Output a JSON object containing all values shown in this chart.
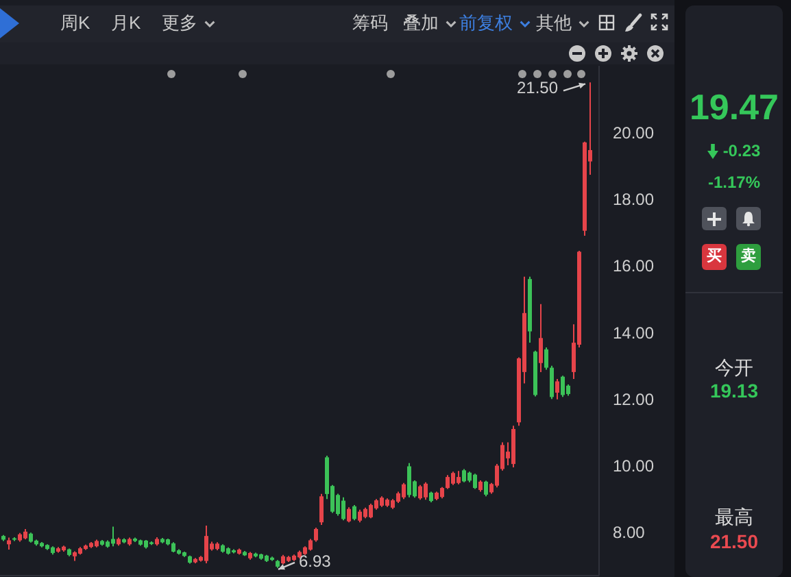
{
  "chart_data": [
    {
      "type": "candlestick",
      "categories": [
        null,
        null,
        null,
        null,
        null,
        null,
        null,
        null,
        null,
        null,
        null,
        null,
        null,
        null,
        null,
        null,
        null,
        null,
        null,
        null,
        null,
        null,
        null,
        null,
        null,
        null,
        null,
        null,
        null,
        null,
        null,
        null,
        null,
        null,
        null,
        null,
        null,
        null,
        null,
        null,
        null,
        null,
        null,
        null,
        null,
        null,
        null,
        null,
        null,
        null,
        null,
        null,
        null,
        null,
        null,
        null,
        null,
        null,
        null,
        null,
        null,
        null,
        null,
        null,
        null,
        null,
        null,
        null,
        null,
        null,
        null,
        null,
        null,
        null,
        null,
        null,
        null,
        null,
        null,
        null,
        null,
        null,
        null,
        null,
        null,
        null,
        null,
        null,
        null,
        null,
        null,
        null,
        null,
        null,
        null,
        null,
        null,
        null,
        null,
        null,
        null,
        null,
        null,
        null,
        null,
        null,
        null,
        null
      ],
      "ohlc": [
        [
          7.89,
          7.92,
          7.74,
          7.78
        ],
        [
          7.64,
          7.84,
          7.48,
          7.76
        ],
        [
          7.82,
          7.85,
          7.74,
          7.78
        ],
        [
          7.76,
          7.98,
          7.72,
          7.94
        ],
        [
          7.82,
          8.1,
          7.79,
          8.02
        ],
        [
          7.96,
          7.99,
          7.69,
          7.72
        ],
        [
          7.75,
          7.78,
          7.6,
          7.64
        ],
        [
          7.68,
          7.71,
          7.55,
          7.58
        ],
        [
          7.62,
          7.64,
          7.47,
          7.5
        ],
        [
          7.55,
          7.58,
          7.33,
          7.38
        ],
        [
          7.42,
          7.56,
          7.39,
          7.52
        ],
        [
          7.46,
          7.6,
          7.42,
          7.57
        ],
        [
          7.49,
          7.51,
          7.28,
          7.32
        ],
        [
          7.28,
          7.43,
          7.14,
          7.4
        ],
        [
          7.36,
          7.56,
          7.33,
          7.52
        ],
        [
          7.5,
          7.63,
          7.47,
          7.6
        ],
        [
          7.56,
          7.71,
          7.53,
          7.68
        ],
        [
          7.58,
          7.78,
          7.55,
          7.74
        ],
        [
          7.74,
          7.77,
          7.6,
          7.63
        ],
        [
          7.72,
          7.76,
          7.54,
          7.57
        ],
        [
          7.8,
          8.17,
          7.58,
          7.66
        ],
        [
          7.64,
          7.84,
          7.6,
          7.8
        ],
        [
          7.79,
          7.82,
          7.67,
          7.7
        ],
        [
          7.64,
          7.84,
          7.6,
          7.8
        ],
        [
          7.81,
          7.84,
          7.71,
          7.74
        ],
        [
          7.76,
          7.78,
          7.6,
          7.63
        ],
        [
          7.75,
          7.77,
          7.51,
          7.55
        ],
        [
          7.7,
          7.73,
          7.62,
          7.65
        ],
        [
          7.64,
          7.85,
          7.6,
          7.8
        ],
        [
          7.8,
          7.83,
          7.67,
          7.7
        ],
        [
          7.79,
          7.81,
          7.61,
          7.64
        ],
        [
          7.67,
          7.7,
          7.4,
          7.42
        ],
        [
          7.46,
          7.49,
          7.33,
          7.36
        ],
        [
          7.4,
          7.42,
          7.26,
          7.29
        ],
        [
          7.28,
          7.3,
          7.06,
          7.09
        ],
        [
          7.1,
          7.23,
          7.07,
          7.2
        ],
        [
          7.15,
          7.29,
          7.12,
          7.26
        ],
        [
          7.14,
          8.2,
          7.07,
          7.89
        ],
        [
          7.49,
          7.72,
          7.45,
          7.66
        ],
        [
          7.5,
          7.7,
          7.46,
          7.66
        ],
        [
          7.61,
          7.64,
          7.39,
          7.42
        ],
        [
          7.52,
          7.55,
          7.33,
          7.36
        ],
        [
          7.46,
          7.49,
          7.37,
          7.4
        ],
        [
          7.36,
          7.51,
          7.33,
          7.48
        ],
        [
          7.41,
          7.44,
          7.29,
          7.31
        ],
        [
          7.22,
          7.41,
          7.18,
          7.38
        ],
        [
          7.36,
          7.39,
          7.25,
          7.28
        ],
        [
          7.34,
          7.36,
          7.18,
          7.21
        ],
        [
          7.3,
          7.32,
          7.11,
          7.14
        ],
        [
          7.24,
          7.27,
          7.14,
          7.17
        ],
        [
          7.14,
          7.17,
          6.93,
          6.97
        ],
        [
          7.07,
          7.32,
          7.04,
          7.28
        ],
        [
          7.14,
          7.29,
          7.11,
          7.26
        ],
        [
          7.17,
          7.33,
          7.14,
          7.3
        ],
        [
          7.25,
          7.45,
          7.22,
          7.41
        ],
        [
          7.35,
          7.58,
          7.32,
          7.55
        ],
        [
          7.48,
          7.8,
          7.45,
          7.76
        ],
        [
          7.76,
          8.14,
          7.72,
          8.1
        ],
        [
          8.3,
          9.15,
          8.22,
          9.08
        ],
        [
          10.25,
          10.3,
          9.0,
          9.15
        ],
        [
          9.39,
          9.42,
          8.58,
          8.62
        ],
        [
          9.12,
          9.16,
          8.5,
          8.55
        ],
        [
          8.95,
          9.05,
          8.36,
          8.4
        ],
        [
          8.33,
          8.75,
          8.3,
          8.7
        ],
        [
          8.78,
          8.82,
          8.36,
          8.4
        ],
        [
          8.35,
          8.68,
          8.3,
          8.62
        ],
        [
          8.46,
          8.74,
          8.42,
          8.7
        ],
        [
          8.45,
          8.86,
          8.42,
          8.82
        ],
        [
          8.72,
          9.0,
          8.68,
          8.96
        ],
        [
          8.8,
          9.08,
          8.76,
          9.04
        ],
        [
          8.8,
          9.02,
          8.76,
          8.98
        ],
        [
          8.74,
          9.0,
          8.7,
          8.96
        ],
        [
          8.92,
          9.22,
          8.88,
          9.17
        ],
        [
          9.05,
          9.48,
          9.0,
          9.44
        ],
        [
          9.98,
          10.08,
          9.05,
          9.12
        ],
        [
          9.53,
          9.56,
          9.04,
          9.08
        ],
        [
          9.02,
          9.42,
          8.98,
          9.38
        ],
        [
          9.05,
          9.5,
          8.98,
          9.46
        ],
        [
          9.19,
          9.22,
          8.9,
          8.94
        ],
        [
          9.0,
          9.22,
          8.96,
          9.19
        ],
        [
          9.06,
          9.36,
          9.02,
          9.33
        ],
        [
          9.33,
          9.72,
          9.3,
          9.66
        ],
        [
          9.46,
          9.82,
          9.42,
          9.78
        ],
        [
          9.48,
          9.84,
          9.44,
          9.66
        ],
        [
          9.86,
          9.9,
          9.5,
          9.53
        ],
        [
          9.79,
          9.82,
          9.5,
          9.55
        ],
        [
          9.73,
          9.76,
          9.3,
          9.33
        ],
        [
          9.27,
          9.56,
          9.22,
          9.52
        ],
        [
          9.52,
          9.55,
          9.08,
          9.13
        ],
        [
          9.2,
          9.48,
          9.16,
          9.45
        ],
        [
          9.4,
          10.05,
          9.35,
          10.0
        ],
        [
          9.9,
          10.7,
          9.85,
          10.62
        ],
        [
          10.22,
          10.7,
          10.01,
          10.42
        ],
        [
          10.05,
          11.2,
          9.95,
          11.1
        ],
        [
          11.3,
          13.25,
          11.2,
          13.22
        ],
        [
          12.81,
          15.67,
          12.47,
          14.58
        ],
        [
          15.6,
          15.67,
          13.69,
          14.03
        ],
        [
          13.42,
          13.45,
          12.08,
          12.12
        ],
        [
          13.08,
          14.85,
          12.81,
          13.83
        ],
        [
          13.49,
          13.55,
          12.88,
          12.94
        ],
        [
          12.94,
          13.0,
          12.0,
          12.06
        ],
        [
          12.19,
          12.6,
          11.99,
          12.53
        ],
        [
          12.67,
          12.7,
          12.06,
          12.12
        ],
        [
          12.4,
          12.44,
          12.1,
          12.15
        ],
        [
          12.81,
          14.24,
          12.6,
          13.69
        ],
        [
          13.63,
          16.45,
          13.55,
          16.42
        ],
        [
          17.05,
          19.72,
          16.9,
          19.7
        ],
        [
          19.13,
          21.5,
          18.73,
          19.47
        ]
      ],
      "colors": [
        "#3cc258",
        "#e6444a",
        "#3cc258",
        "#e6444a",
        "#e6444a",
        "#3cc258",
        "#3cc258",
        "#3cc258",
        "#3cc258",
        "#3cc258",
        "#e6444a",
        "#e6444a",
        "#3cc258",
        "#e6444a",
        "#e6444a",
        "#e6444a",
        "#e6444a",
        "#e6444a",
        "#3cc258",
        "#3cc258",
        "#3cc258",
        "#e6444a",
        "#3cc258",
        "#e6444a",
        "#3cc258",
        "#3cc258",
        "#3cc258",
        "#3cc258",
        "#e6444a",
        "#3cc258",
        "#3cc258",
        "#3cc258",
        "#3cc258",
        "#3cc258",
        "#3cc258",
        "#e6444a",
        "#e6444a",
        "#e6444a",
        "#e6444a",
        "#e6444a",
        "#3cc258",
        "#3cc258",
        "#3cc258",
        "#e6444a",
        "#3cc258",
        "#e6444a",
        "#3cc258",
        "#3cc258",
        "#3cc258",
        "#3cc258",
        "#3cc258",
        "#e6444a",
        "#e6444a",
        "#e6444a",
        "#e6444a",
        "#e6444a",
        "#e6444a",
        "#e6444a",
        "#e6444a",
        "#3cc258",
        "#3cc258",
        "#3cc258",
        "#3cc258",
        "#e6444a",
        "#3cc258",
        "#e6444a",
        "#e6444a",
        "#e6444a",
        "#e6444a",
        "#e6444a",
        "#e6444a",
        "#e6444a",
        "#e6444a",
        "#e6444a",
        "#3cc258",
        "#3cc258",
        "#e6444a",
        "#e6444a",
        "#3cc258",
        "#e6444a",
        "#e6444a",
        "#e6444a",
        "#e6444a",
        "#e6444a",
        "#3cc258",
        "#3cc258",
        "#3cc258",
        "#e6444a",
        "#3cc258",
        "#e6444a",
        "#e6444a",
        "#e6444a",
        "#e6444a",
        "#e6444a",
        "#e6444a",
        "#e6444a",
        "#3cc258",
        "#3cc258",
        "#e6444a",
        "#3cc258",
        "#3cc258",
        "#e6444a",
        "#3cc258",
        "#3cc258",
        "#e6444a",
        "#e6444a",
        "#e6444a",
        "#e6444a"
      ],
      "ylim": [
        6.7,
        22
      ],
      "yticks": [
        {
          "value": 8,
          "label": "8.00"
        },
        {
          "value": 10,
          "label": "10.00"
        },
        {
          "value": 12,
          "label": "12.00"
        },
        {
          "value": 14,
          "label": "14.00"
        },
        {
          "value": 16,
          "label": "16.00"
        },
        {
          "value": 18,
          "label": "18.00"
        },
        {
          "value": 20,
          "label": "20.00"
        }
      ],
      "tick_labels": "y",
      "annotations": [
        "周K",
        "月K",
        "更多",
        "筹码",
        "叠加",
        "前复权",
        "其他",
        "21.50",
        "6.93"
      ]
    },
    {
      "type": "other",
      "annotations": [
        "19.47",
        "-0.23",
        "-1.17%",
        "买",
        "卖",
        "今开",
        "19.13",
        "最高",
        "21.50"
      ]
    }
  ]
}
